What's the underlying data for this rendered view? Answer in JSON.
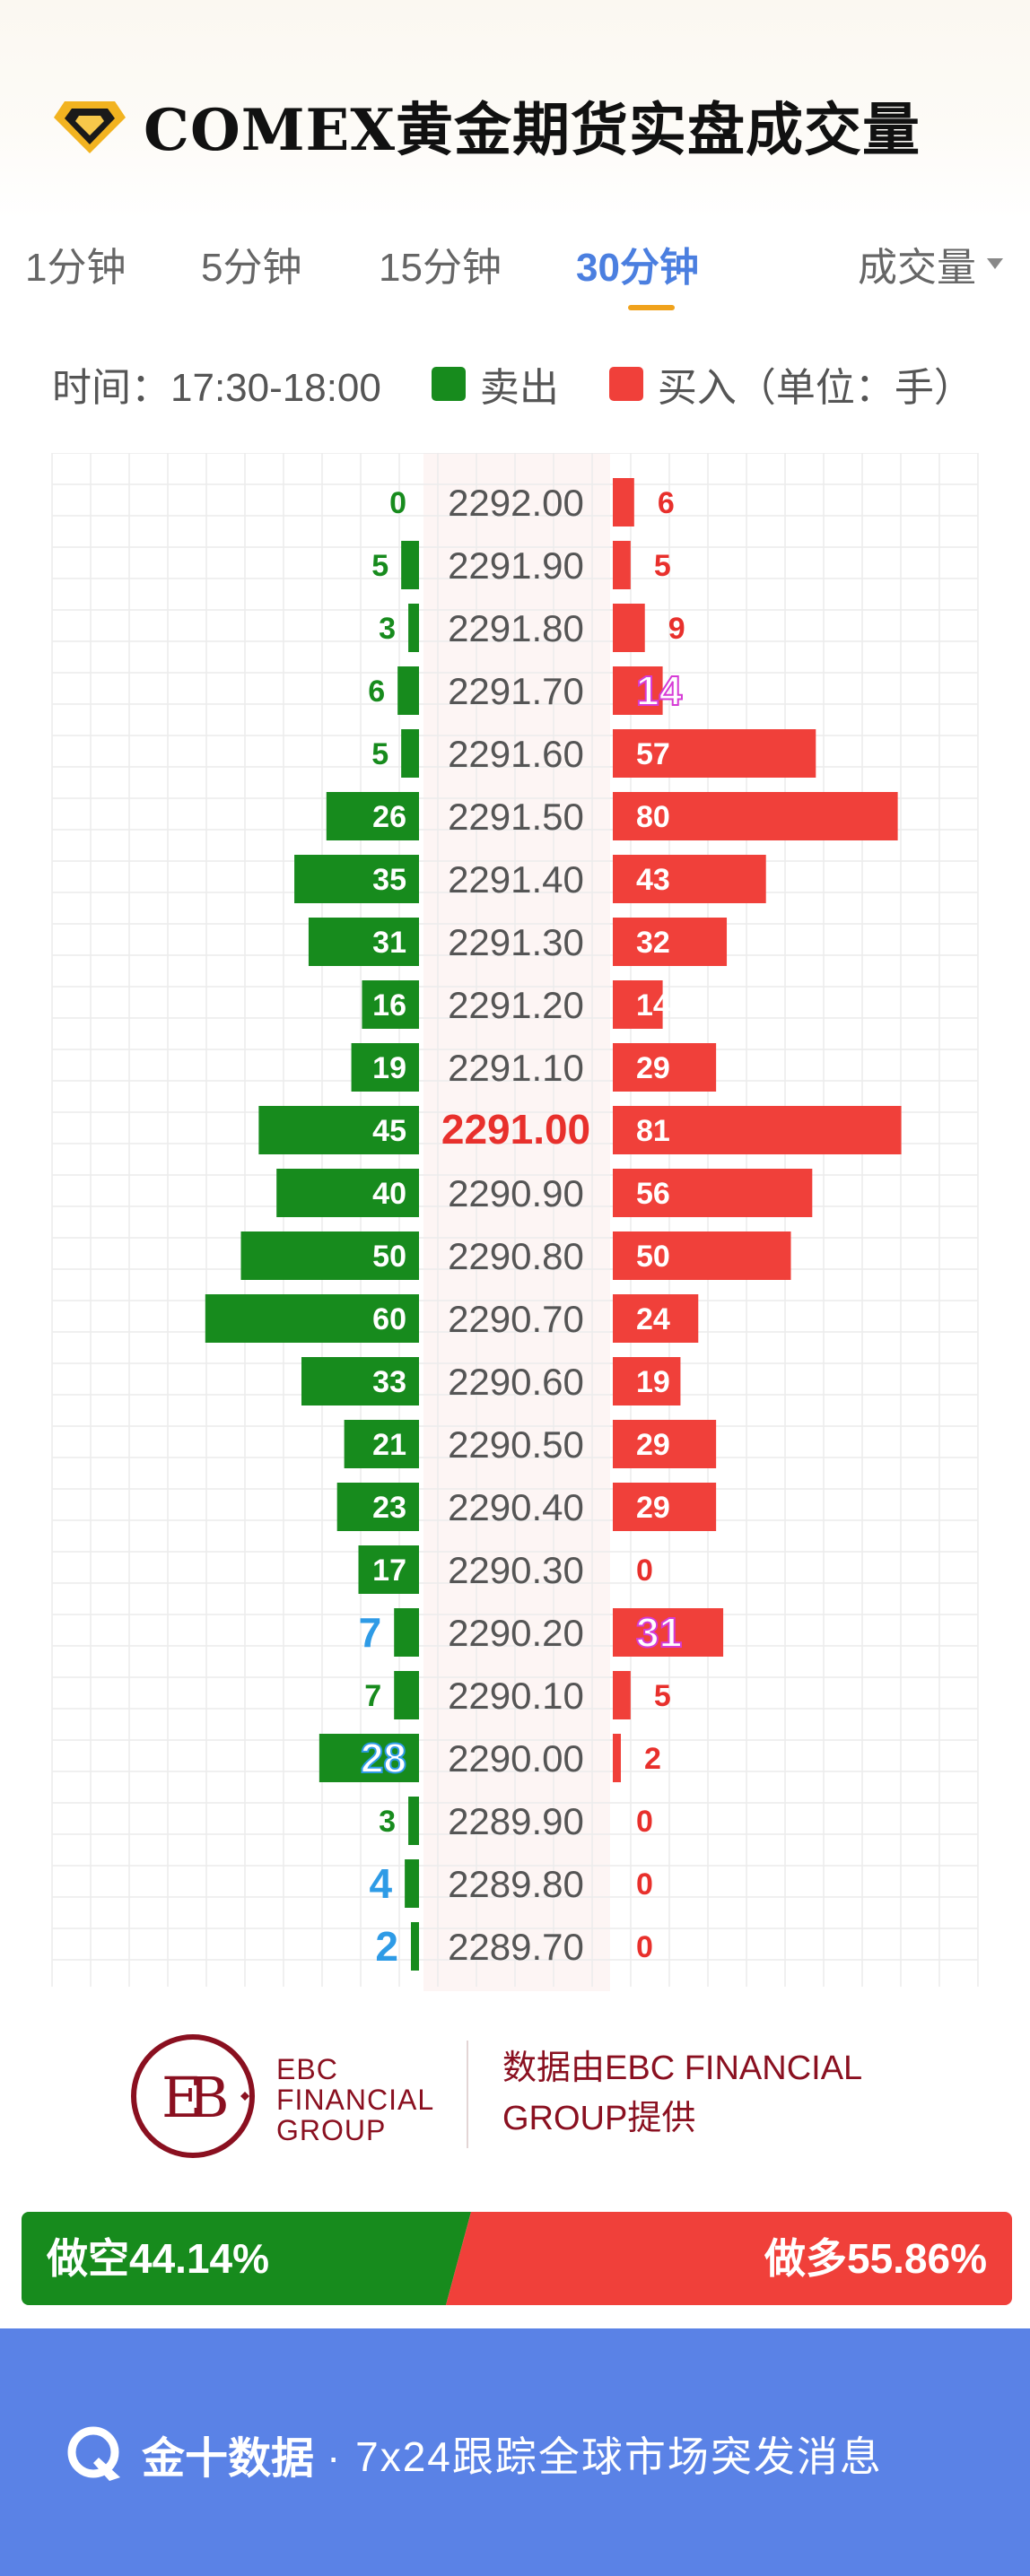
{
  "header": {
    "title": "COMEX黄金期货实盘成交量",
    "logo_icon": "gold-diamond-icon"
  },
  "tabs": [
    {
      "label": "1分钟",
      "active": false
    },
    {
      "label": "5分钟",
      "active": false
    },
    {
      "label": "15分钟",
      "active": false
    },
    {
      "label": "30分钟",
      "active": true
    }
  ],
  "dropdown": {
    "label": "成交量",
    "icon": "caret-down-icon"
  },
  "legend": {
    "time_label": "时间：17:30-18:00",
    "sell_label": "卖出",
    "buy_label": "买入（单位：手）",
    "sell_color": "#178b1d",
    "buy_color": "#f0403a"
  },
  "chart_data": {
    "type": "bar",
    "orientation": "horizontal-diverging",
    "prices": [
      "2292.00",
      "2291.90",
      "2291.80",
      "2291.70",
      "2291.60",
      "2291.50",
      "2291.40",
      "2291.30",
      "2291.20",
      "2291.10",
      "2291.00",
      "2290.90",
      "2290.80",
      "2290.70",
      "2290.60",
      "2290.50",
      "2290.40",
      "2290.30",
      "2290.20",
      "2290.10",
      "2290.00",
      "2289.90",
      "2289.80",
      "2289.70"
    ],
    "current_price": "2291.00",
    "series": [
      {
        "name": "卖出",
        "color": "#178b1d",
        "values": [
          0,
          5,
          3,
          6,
          5,
          26,
          35,
          31,
          16,
          19,
          45,
          40,
          50,
          60,
          33,
          21,
          23,
          17,
          7,
          7,
          28,
          3,
          4,
          2
        ]
      },
      {
        "name": "买入",
        "color": "#f0403a",
        "values": [
          6,
          5,
          9,
          14,
          57,
          80,
          43,
          32,
          14,
          29,
          81,
          56,
          50,
          24,
          19,
          29,
          29,
          0,
          31,
          5,
          2,
          0,
          0,
          0
        ]
      }
    ],
    "highlighted": {
      "sell": [
        18,
        20,
        22,
        23
      ],
      "buy": [
        3,
        18
      ]
    },
    "grid": true
  },
  "provider": {
    "logo_icon": "ebc-logo-icon",
    "logo_line1": "EBC",
    "logo_line2": "FINANCIAL",
    "logo_line3": "GROUP",
    "text": "数据由EBC FINANCIAL GROUP提供"
  },
  "ratio": {
    "short_label": "做空44.14%",
    "long_label": "做多55.86%",
    "short_pct": 44.14,
    "long_pct": 55.86
  },
  "footer": {
    "logo_icon": "jin10-logo-icon",
    "brand": "金十数据",
    "slogan": "· 7x24跟踪全球市场突发消息"
  }
}
